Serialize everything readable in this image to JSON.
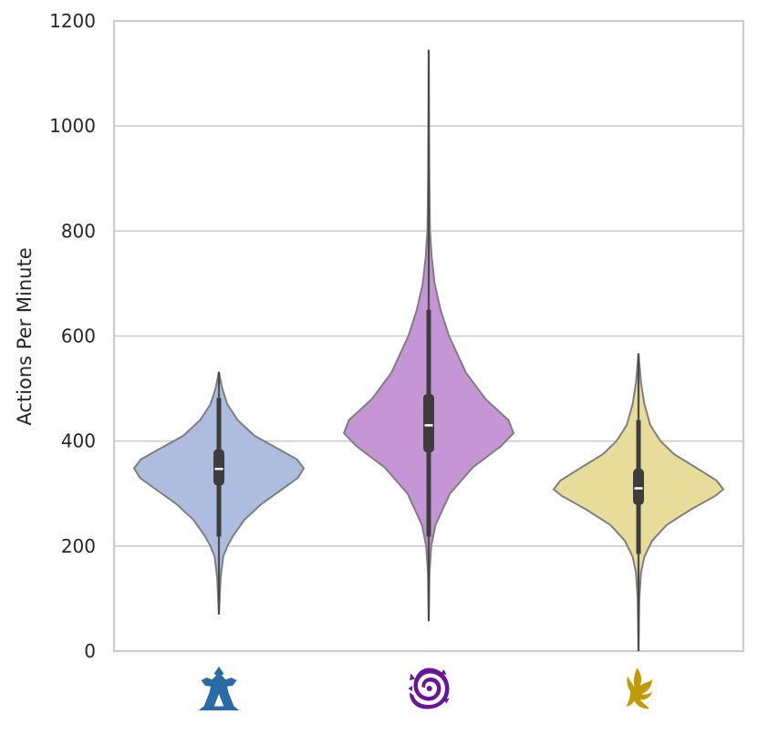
{
  "chart_data": {
    "type": "violin",
    "title": "",
    "xlabel": "",
    "ylabel": "Actions Per Minute",
    "ylim": [
      0,
      1200
    ],
    "yticks": [
      0,
      200,
      400,
      600,
      800,
      1000,
      1200
    ],
    "grid": "horizontal",
    "categories": [
      {
        "icon": "terran-race-icon",
        "fill_color": "#aebcdf",
        "icon_color": "#2a6aa6",
        "min": 70,
        "whisker_low": 218,
        "q1": 315,
        "median": 347,
        "q3": 385,
        "whisker_high": 482,
        "max": 532,
        "density": [
          [
            70,
            0
          ],
          [
            140,
            0.02
          ],
          [
            180,
            0.05
          ],
          [
            200,
            0.1
          ],
          [
            220,
            0.17
          ],
          [
            250,
            0.3
          ],
          [
            280,
            0.5
          ],
          [
            310,
            0.76
          ],
          [
            330,
            0.93
          ],
          [
            348,
            1.0
          ],
          [
            365,
            0.92
          ],
          [
            385,
            0.7
          ],
          [
            410,
            0.42
          ],
          [
            440,
            0.22
          ],
          [
            470,
            0.1
          ],
          [
            500,
            0.04
          ],
          [
            532,
            0
          ]
        ]
      },
      {
        "icon": "zerg-race-icon",
        "fill_color": "#c595d5",
        "icon_color": "#6a1595",
        "min": 57,
        "whisker_low": 218,
        "q1": 378,
        "median": 430,
        "q3": 490,
        "whisker_high": 650,
        "max": 1145,
        "density": [
          [
            57,
            0
          ],
          [
            150,
            0.01
          ],
          [
            200,
            0.03
          ],
          [
            240,
            0.08
          ],
          [
            300,
            0.25
          ],
          [
            350,
            0.52
          ],
          [
            390,
            0.85
          ],
          [
            415,
            1.0
          ],
          [
            440,
            0.94
          ],
          [
            480,
            0.67
          ],
          [
            530,
            0.44
          ],
          [
            600,
            0.24
          ],
          [
            650,
            0.14
          ],
          [
            700,
            0.07
          ],
          [
            750,
            0.035
          ],
          [
            800,
            0.015
          ],
          [
            900,
            0.007
          ],
          [
            1000,
            0.004
          ],
          [
            1145,
            0
          ]
        ]
      },
      {
        "icon": "protoss-race-icon",
        "fill_color": "#e8dc9b",
        "icon_color": "#c29a05",
        "min": 0,
        "whisker_low": 185,
        "q1": 278,
        "median": 310,
        "q3": 348,
        "whisker_high": 440,
        "max": 567,
        "density": [
          [
            0,
            0
          ],
          [
            100,
            0.01
          ],
          [
            150,
            0.03
          ],
          [
            180,
            0.07
          ],
          [
            210,
            0.16
          ],
          [
            240,
            0.33
          ],
          [
            270,
            0.62
          ],
          [
            295,
            0.9
          ],
          [
            308,
            1.0
          ],
          [
            325,
            0.92
          ],
          [
            345,
            0.72
          ],
          [
            375,
            0.42
          ],
          [
            400,
            0.26
          ],
          [
            430,
            0.14
          ],
          [
            470,
            0.07
          ],
          [
            510,
            0.03
          ],
          [
            567,
            0
          ]
        ]
      }
    ]
  }
}
